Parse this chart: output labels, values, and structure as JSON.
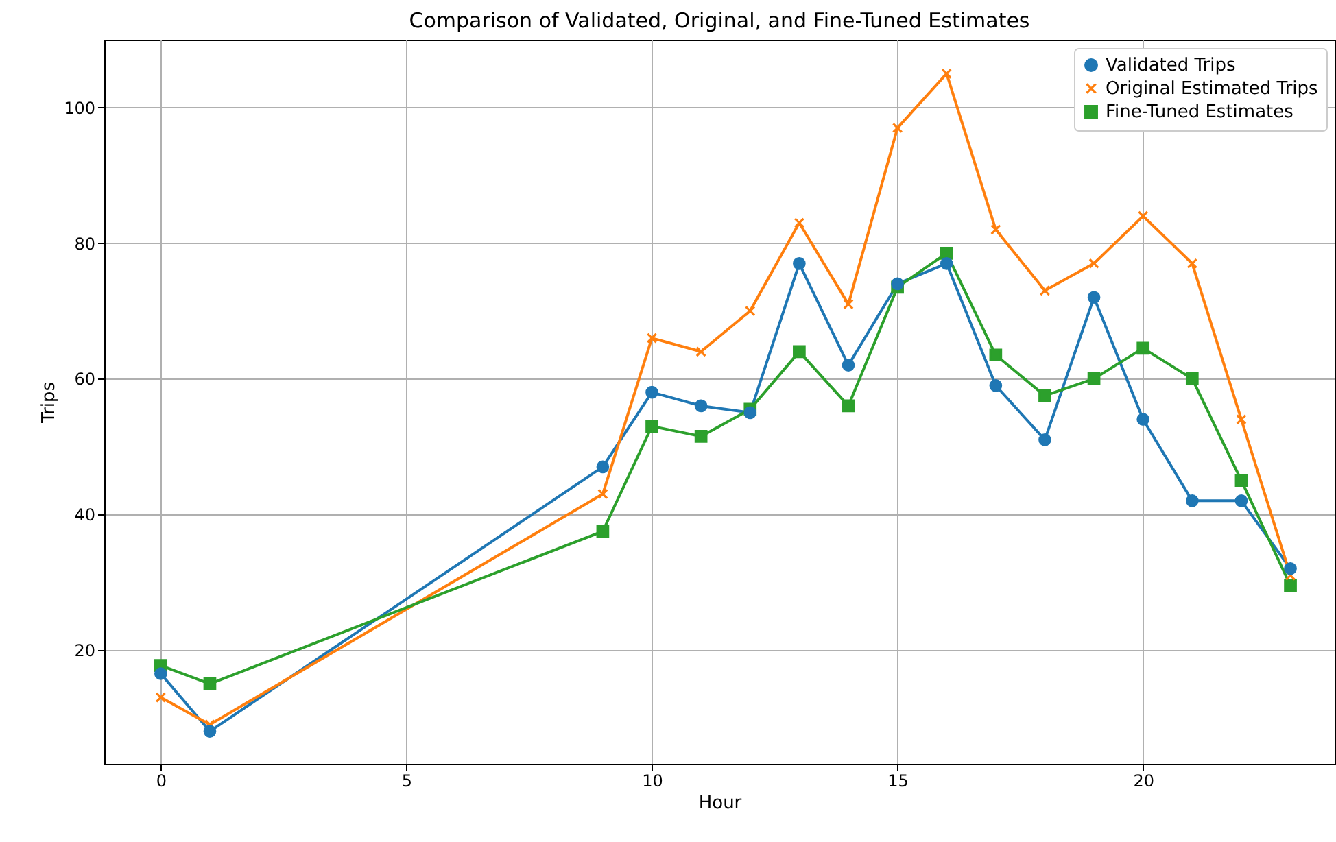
{
  "chart_data": {
    "type": "line",
    "title": "Comparison of Validated, Original, and Fine-Tuned Estimates",
    "xlabel": "Hour",
    "ylabel": "Trips",
    "x": [
      0,
      1,
      9,
      10,
      11,
      12,
      13,
      14,
      15,
      16,
      17,
      18,
      19,
      20,
      21,
      22,
      23
    ],
    "series": [
      {
        "name": "Validated Trips",
        "color": "#1f77b4",
        "marker": "circle",
        "values": [
          16.5,
          8,
          47,
          58,
          56,
          55,
          77,
          62,
          74,
          77,
          59,
          51,
          72,
          54,
          42,
          42,
          32
        ]
      },
      {
        "name": "Original Estimated Trips",
        "color": "#ff7f0e",
        "marker": "cross",
        "values": [
          13,
          9,
          43,
          66,
          64,
          70,
          83,
          71,
          97,
          105,
          82,
          73,
          77,
          84,
          77,
          54,
          31
        ]
      },
      {
        "name": "Fine-Tuned Estimates",
        "color": "#2ca02c",
        "marker": "square",
        "values": [
          17.7,
          15,
          37.5,
          53,
          51.5,
          55.5,
          64,
          56,
          73.5,
          78.5,
          63.5,
          57.5,
          60,
          64.5,
          60,
          45,
          29.5
        ]
      }
    ],
    "xlim": [
      -1.15,
      23.9
    ],
    "xticks": [
      0,
      5,
      10,
      15,
      20
    ],
    "ylim": [
      3.2,
      110
    ],
    "yticks": [
      20,
      40,
      60,
      80,
      100
    ],
    "grid": true,
    "legend": "top right",
    "line_style": "solid"
  }
}
